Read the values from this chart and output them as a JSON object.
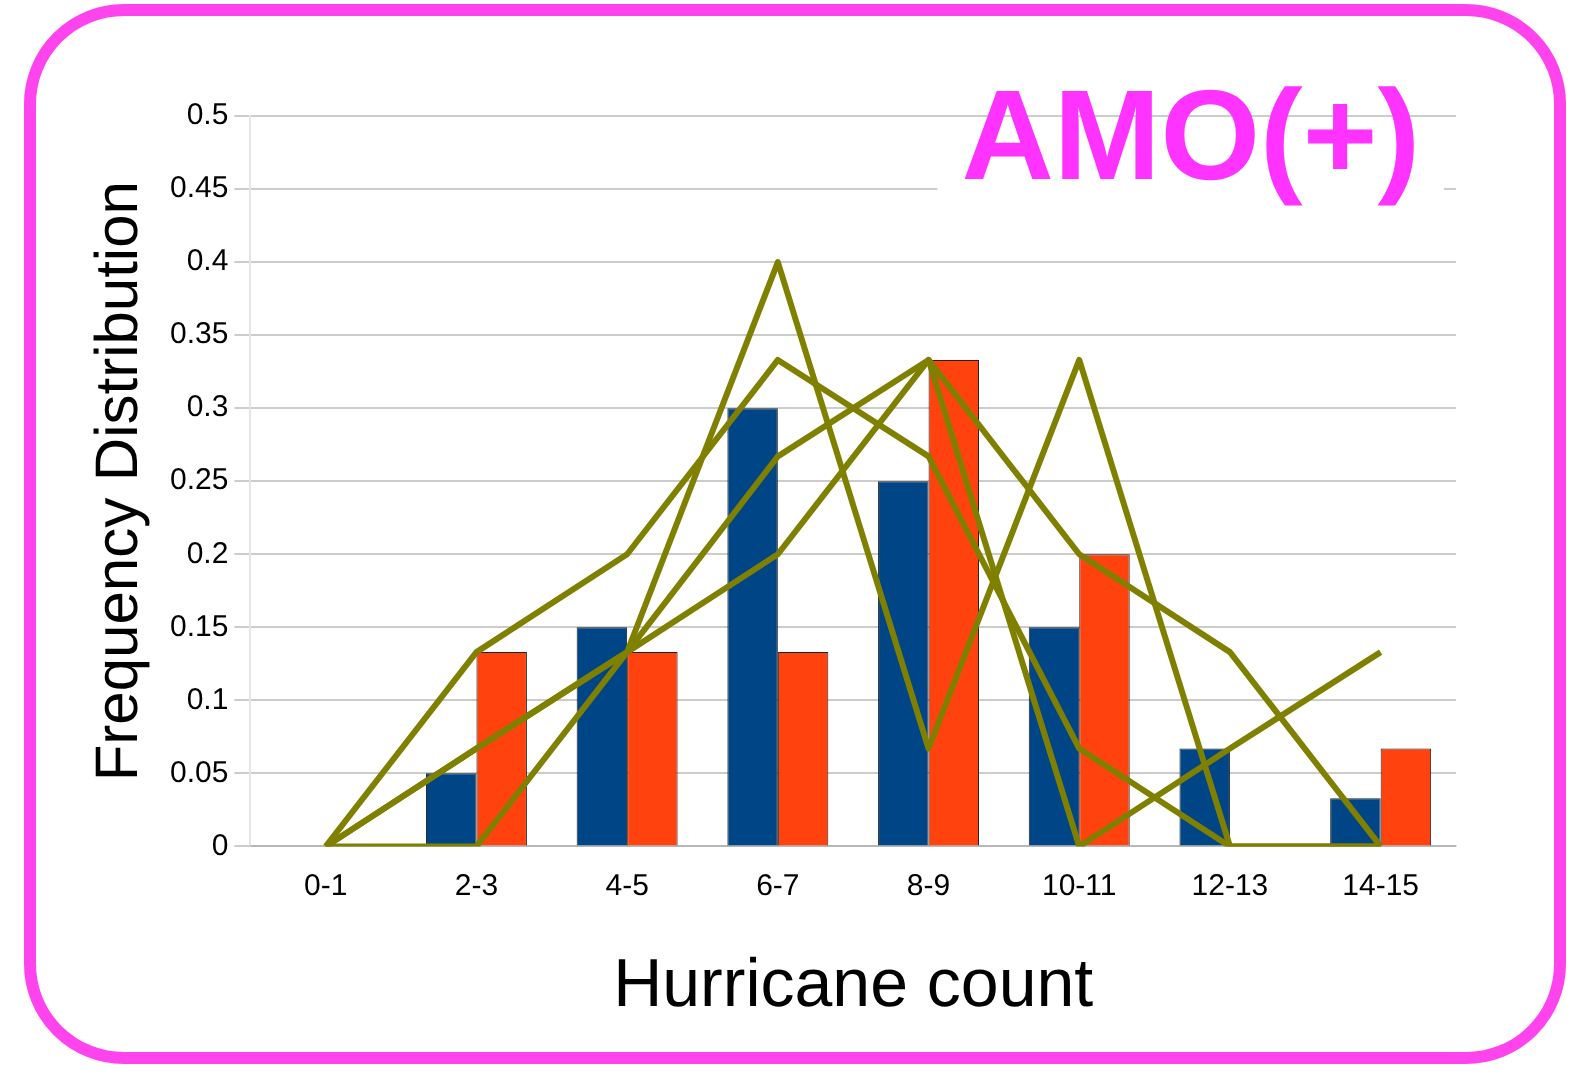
{
  "chart_data": {
    "type": "bar",
    "title": "AMO(+)",
    "xlabel": "Hurricane count",
    "ylabel": "Frequency Distribution",
    "categories": [
      "0-1",
      "2-3",
      "4-5",
      "6-7",
      "8-9",
      "10-11",
      "12-13",
      "14-15"
    ],
    "series": [
      {
        "color": "#004586",
        "values": [
          0,
          0.05,
          0.15,
          0.3,
          0.25,
          0.15,
          0.067,
          0.033
        ]
      },
      {
        "color": "#ff420e",
        "values": [
          0,
          0.133,
          0.133,
          0.133,
          0.333,
          0.2,
          0,
          0.067
        ]
      },
      {
        "type": "line",
        "color": "#808000",
        "values": [
          0,
          0,
          0.133,
          0.4,
          0.067,
          0.333,
          0,
          0
        ]
      },
      {
        "type": "line",
        "color": "#808000",
        "values": [
          0,
          0.133,
          0.2,
          0.333,
          0.267,
          0.067,
          0,
          0
        ]
      },
      {
        "type": "line",
        "color": "#808000",
        "values": [
          0,
          0.067,
          0.133,
          0.2,
          0.333,
          0.2,
          0.133,
          0
        ]
      },
      {
        "type": "line",
        "color": "#808000",
        "values": [
          0,
          0.067,
          0.133,
          0.267,
          0.333,
          0,
          0.067,
          0.133
        ]
      }
    ],
    "ylim": [
      0,
      0.5
    ],
    "yticks": [
      0,
      0.05,
      0.1,
      0.15,
      0.2,
      0.25,
      0.3,
      0.35,
      0.4,
      0.45,
      0.5
    ],
    "grid": "y",
    "legend": false,
    "marker": "none",
    "line_style": "solid"
  }
}
